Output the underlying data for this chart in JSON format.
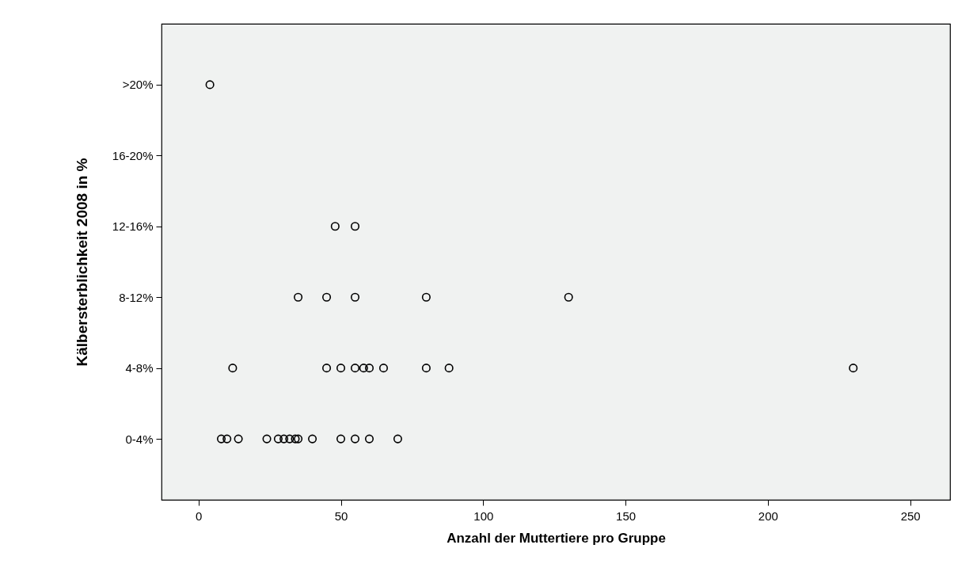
{
  "chart_data": {
    "type": "scatter",
    "orientation": "horizontal",
    "xlabel": "Anzahl der Muttertiere pro Gruppe",
    "ylabel": "Kälbersterblichkeit 2008 in %",
    "categories": [
      ">20%",
      "16-20%",
      "12-16%",
      "8-12%",
      "4-8%",
      "0-4%"
    ],
    "series": [
      {
        "color": "#000000",
        "x": [
          ">20%",
          "12-16%",
          "12-16%",
          "8-12%",
          "8-12%",
          "8-12%",
          "8-12%",
          "8-12%",
          "4-8%",
          "4-8%",
          "4-8%",
          "4-8%",
          "4-8%",
          "4-8%",
          "4-8%",
          "4-8%",
          "4-8%",
          "4-8%",
          "0-4%",
          "0-4%",
          "0-4%",
          "0-4%",
          "0-4%",
          "0-4%",
          "0-4%",
          "0-4%",
          "0-4%",
          "0-4%",
          "0-4%",
          "0-4%",
          "0-4%",
          "0-4%"
        ],
        "values": [
          4,
          48,
          55,
          35,
          45,
          55,
          80,
          130,
          12,
          45,
          50,
          55,
          58,
          60,
          65,
          80,
          88,
          230,
          8,
          10,
          14,
          24,
          28,
          30,
          32,
          34,
          35,
          40,
          50,
          55,
          60,
          70
        ]
      }
    ],
    "marker": "circle",
    "xlim": [
      -13,
      264
    ],
    "xticks": [
      0,
      50,
      100,
      150,
      200,
      250
    ],
    "grid": false
  }
}
